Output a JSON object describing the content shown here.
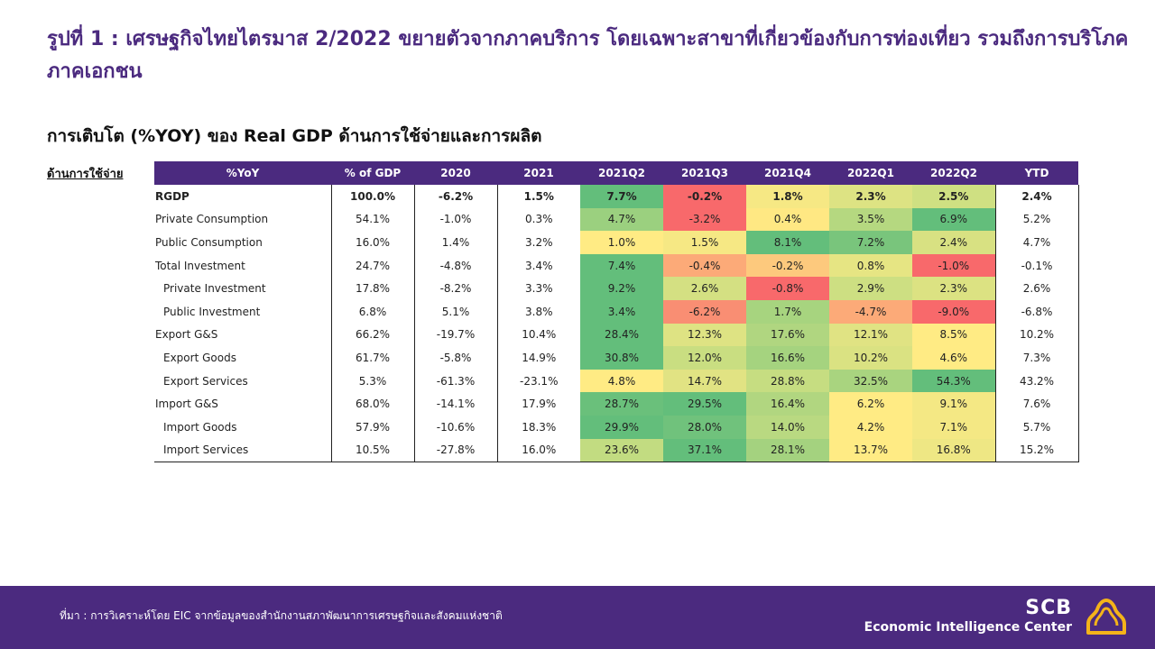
{
  "title": "รูปที่ 1 : เศรษฐกิจไทยไตรมาส 2/2022 ขยายตัวจากภาคบริการ โดยเฉพาะสาขาที่เกี่ยวข้องกับการท่องเที่ยว รวมถึงการบริโภคภาคเอกชน",
  "subtitle": "การเติบโต (%YOY) ของ Real GDP ด้านการใช้จ่ายและการผลิต",
  "side_label": "ด้านการใช้จ่าย",
  "footer": {
    "source": "ที่มา : การวิเคราะห์โดย EIC จากข้อมูลของสำนักงานสภาพัฒนาการเศรษฐกิจและสังคมแห่งชาติ",
    "logo_text": "SCB",
    "logo_subtext": "Economic Intelligence Center"
  },
  "colors": {
    "brand": "#4b2a7f"
  },
  "chart_data": {
    "type": "table",
    "columns": [
      "%YoY",
      "% of GDP",
      "2020",
      "2021",
      "2021Q2",
      "2021Q3",
      "2021Q4",
      "2022Q1",
      "2022Q2",
      "YTD"
    ],
    "heatmap_columns": [
      "2021Q2",
      "2021Q3",
      "2021Q4",
      "2022Q1",
      "2022Q2"
    ],
    "rows": [
      {
        "label": "RGDP",
        "bold": true,
        "indent": false,
        "values": [
          "100.0%",
          "-6.2%",
          "1.5%",
          "7.7%",
          "-0.2%",
          "1.8%",
          "2.3%",
          "2.5%",
          "2.4%"
        ],
        "cell_colors": [
          "#63be7b",
          "#f8696b",
          "#f6e884",
          "#dde383",
          "#cfe082"
        ]
      },
      {
        "label": "Private Consumption",
        "bold": false,
        "indent": false,
        "values": [
          "54.1%",
          "-1.0%",
          "0.3%",
          "4.7%",
          "-3.2%",
          "0.4%",
          "3.5%",
          "6.9%",
          "5.2%"
        ],
        "cell_colors": [
          "#9bd07f",
          "#f8696b",
          "#ffe883",
          "#b5d880",
          "#63be7b"
        ]
      },
      {
        "label": "Public Consumption",
        "bold": false,
        "indent": false,
        "values": [
          "16.0%",
          "1.4%",
          "3.2%",
          "1.0%",
          "1.5%",
          "8.1%",
          "7.2%",
          "2.4%",
          "4.7%"
        ],
        "cell_colors": [
          "#ffeb84",
          "#f6e884",
          "#63be7b",
          "#79c57c",
          "#d8e182"
        ]
      },
      {
        "label": "Total Investment",
        "bold": false,
        "indent": false,
        "values": [
          "24.7%",
          "-4.8%",
          "3.4%",
          "7.4%",
          "-0.4%",
          "-0.2%",
          "0.8%",
          "-1.0%",
          "-0.1%"
        ],
        "cell_colors": [
          "#63be7b",
          "#fcaa78",
          "#fdc97d",
          "#e6e583",
          "#f8696b"
        ]
      },
      {
        "label": "Private Investment",
        "bold": false,
        "indent": true,
        "values": [
          "17.8%",
          "-8.2%",
          "3.3%",
          "9.2%",
          "2.6%",
          "-0.8%",
          "2.9%",
          "2.3%",
          "2.6%"
        ],
        "cell_colors": [
          "#63be7b",
          "#d4e082",
          "#f8696b",
          "#cddf82",
          "#dce282"
        ]
      },
      {
        "label": "Public Investment",
        "bold": false,
        "indent": true,
        "values": [
          "6.8%",
          "5.1%",
          "3.8%",
          "3.4%",
          "-6.2%",
          "1.7%",
          "-4.7%",
          "-9.0%",
          "-6.8%"
        ],
        "cell_colors": [
          "#63be7b",
          "#f98e73",
          "#a7d47f",
          "#fcaa78",
          "#f8696b"
        ]
      },
      {
        "label": "Export G&S",
        "bold": false,
        "indent": false,
        "values": [
          "66.2%",
          "-19.7%",
          "10.4%",
          "28.4%",
          "12.3%",
          "17.6%",
          "12.1%",
          "8.5%",
          "10.2%"
        ],
        "cell_colors": [
          "#63be7b",
          "#dee383",
          "#b0d680",
          "#e0e383",
          "#ffeb84"
        ]
      },
      {
        "label": "Export Goods",
        "bold": false,
        "indent": true,
        "values": [
          "61.7%",
          "-5.8%",
          "14.9%",
          "30.8%",
          "12.0%",
          "16.6%",
          "10.2%",
          "4.6%",
          "7.3%"
        ],
        "cell_colors": [
          "#63be7b",
          "#c9de81",
          "#a5d37f",
          "#dae282",
          "#ffeb84"
        ]
      },
      {
        "label": "Export Services",
        "bold": false,
        "indent": true,
        "values": [
          "5.3%",
          "-61.3%",
          "-23.1%",
          "4.8%",
          "14.7%",
          "28.8%",
          "32.5%",
          "54.3%",
          "43.2%"
        ],
        "cell_colors": [
          "#ffeb84",
          "#e1e383",
          "#c6dd81",
          "#a9d47f",
          "#63be7b"
        ]
      },
      {
        "label": "Import G&S",
        "bold": false,
        "indent": false,
        "values": [
          "68.0%",
          "-14.1%",
          "17.9%",
          "28.7%",
          "29.5%",
          "16.4%",
          "6.2%",
          "9.1%",
          "7.6%"
        ],
        "cell_colors": [
          "#6ac07b",
          "#63be7b",
          "#b1d680",
          "#ffeb84",
          "#f4e884"
        ]
      },
      {
        "label": "Import Goods",
        "bold": false,
        "indent": true,
        "values": [
          "57.9%",
          "-10.6%",
          "18.3%",
          "29.9%",
          "28.0%",
          "14.0%",
          "4.2%",
          "7.1%",
          "5.7%"
        ],
        "cell_colors": [
          "#63be7b",
          "#70c27c",
          "#b9d981",
          "#ffeb84",
          "#f4e884"
        ]
      },
      {
        "label": "Import Services",
        "bold": false,
        "indent": true,
        "values": [
          "10.5%",
          "-27.8%",
          "16.0%",
          "23.6%",
          "37.1%",
          "28.1%",
          "13.7%",
          "16.8%",
          "15.2%"
        ],
        "cell_colors": [
          "#c2dc81",
          "#63be7b",
          "#a4d27f",
          "#ffeb84",
          "#eee784"
        ]
      }
    ]
  }
}
